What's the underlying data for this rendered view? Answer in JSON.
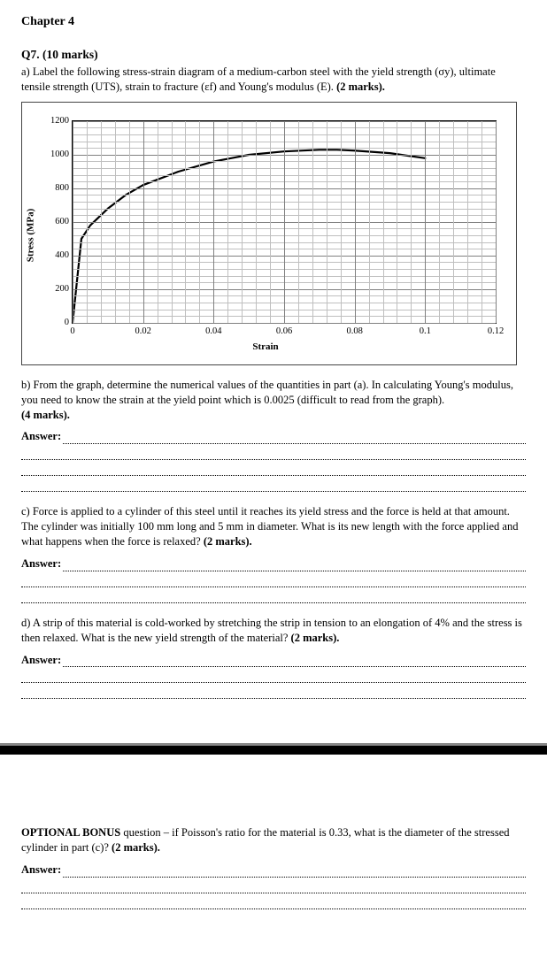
{
  "chapter_title": "Chapter 4",
  "question_header": "Q7. (10 marks)",
  "part_a": {
    "label": "a) ",
    "text": "Label the following stress-strain diagram of a medium-carbon steel with the yield strength (σy), ultimate tensile strength (UTS), strain to fracture (εf) and Young's modulus (E). ",
    "marks": "(2 marks)."
  },
  "chart": {
    "type": "line",
    "xlabel": "Strain",
    "ylabel": "Stress (MPa)",
    "xlim": [
      0,
      0.12
    ],
    "ylim": [
      0,
      1200
    ],
    "xticks": [
      0,
      0.02,
      0.04,
      0.06,
      0.08,
      0.1,
      0.12
    ],
    "yticks": [
      0,
      200,
      400,
      600,
      800,
      1000,
      1200
    ],
    "minor_per_major": 5,
    "major_grid_color": "#808080",
    "minor_grid_color": "#bfbfbf",
    "background_color": "#ffffff",
    "curve_color": "#000000",
    "curve_width": 2.2,
    "curve_points": [
      [
        0,
        0
      ],
      [
        0.0025,
        500
      ],
      [
        0.005,
        580
      ],
      [
        0.01,
        680
      ],
      [
        0.015,
        760
      ],
      [
        0.02,
        820
      ],
      [
        0.03,
        900
      ],
      [
        0.04,
        960
      ],
      [
        0.05,
        1000
      ],
      [
        0.06,
        1020
      ],
      [
        0.07,
        1030
      ],
      [
        0.075,
        1030
      ],
      [
        0.08,
        1025
      ],
      [
        0.09,
        1010
      ],
      [
        0.1,
        980
      ]
    ]
  },
  "part_b": {
    "label": "b) ",
    "text": "From the graph, determine the numerical values of the quantities in part (a). In calculating Young's modulus, you need to know the strain at the yield point which is 0.0025 (difficult to read from the graph). ",
    "marks": "(4 marks).",
    "answer_label": "Answer:",
    "lines": 4
  },
  "part_c": {
    "label": "c) ",
    "text": "Force is applied to a cylinder of this steel until it reaches its yield stress and the force is held at that amount. The cylinder was initially 100 mm long and 5 mm in diameter. What is its new length with the force applied and what happens when the force is relaxed? ",
    "marks": "(2 marks).",
    "answer_label": "Answer:",
    "lines": 3
  },
  "part_d": {
    "label": "d) ",
    "text": "A strip of this material is cold-worked by stretching the strip in tension to an elongation of 4% and the stress is then relaxed. What is the new yield strength of the material? ",
    "marks": "(2 marks).",
    "answer_label": "Answer:",
    "lines": 3
  },
  "bonus": {
    "label": "OPTIONAL BONUS",
    "text1": " question – if Poisson's ratio for the material is 0.33, what is the diameter of the stressed cylinder in part (c)? ",
    "marks": "(2 marks).",
    "answer_label": "Answer:",
    "lines": 2
  }
}
